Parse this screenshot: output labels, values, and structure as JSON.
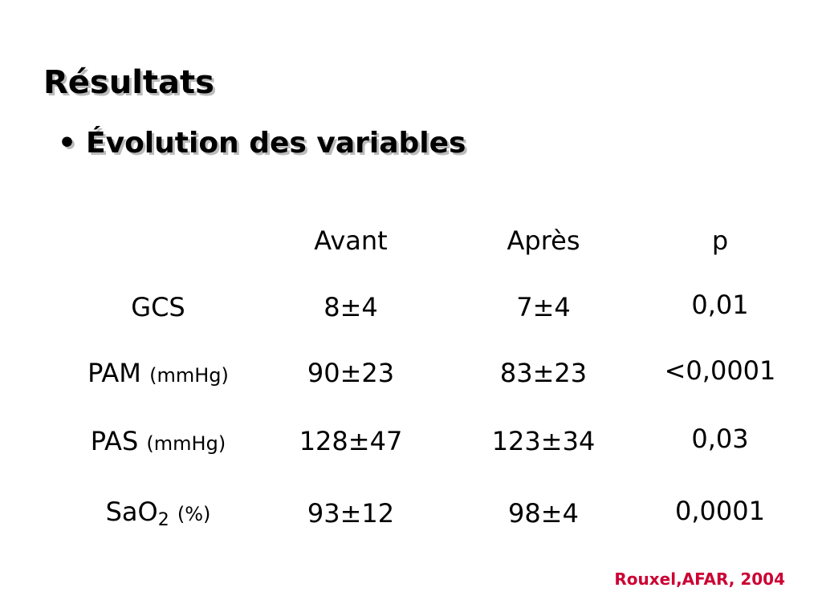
{
  "header": {
    "title": "Résultats",
    "bullet": "Évolution des variables"
  },
  "table": {
    "columns": [
      "Avant",
      "Après",
      "p"
    ],
    "rows": [
      {
        "label": "GCS",
        "values": [
          "8±4",
          "7±4",
          "0,01"
        ]
      },
      {
        "label": "PAM",
        "unit": "(mmHg)",
        "values": [
          "90±23",
          "83±23",
          "<0,0001"
        ]
      },
      {
        "label": "PAS",
        "unit": "(mmHg)",
        "values": [
          "128±47",
          "123±34",
          "0,03"
        ]
      },
      {
        "label": "SaO",
        "sub": "2",
        "unit": "(%)",
        "values": [
          "93±12",
          "98±4",
          "0,0001"
        ]
      }
    ]
  },
  "citation": "Rouxel,AFAR, 2004"
}
